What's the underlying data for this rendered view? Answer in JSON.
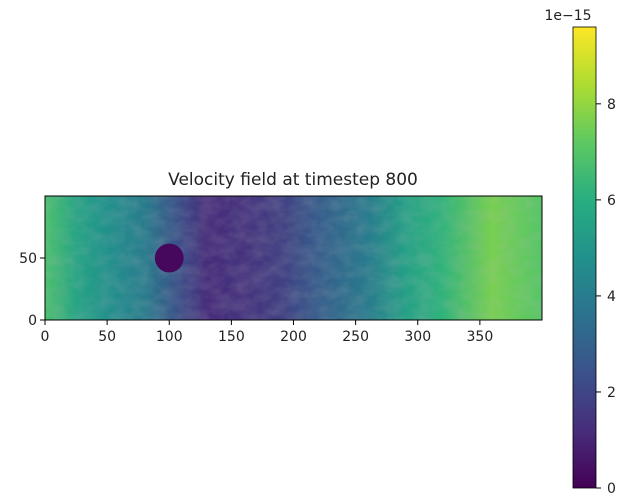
{
  "chart_data": {
    "type": "heatmap",
    "title": "Velocity field at timestep 800",
    "xlabel": "",
    "ylabel": "",
    "xlim": [
      0,
      400
    ],
    "ylim": [
      0,
      100
    ],
    "x_ticks": [
      0,
      50,
      100,
      150,
      200,
      250,
      300,
      350
    ],
    "y_ticks": [
      0,
      50
    ],
    "colormap": "viridis",
    "colorbar": {
      "range": [
        0,
        9.6
      ],
      "ticks": [
        0,
        2,
        4,
        6,
        8
      ],
      "multiplier_label": "1e−15"
    },
    "obstacle": {
      "center": [
        100,
        50
      ],
      "radius": 10
    },
    "mean_magnitude_by_x": [
      [
        0,
        6.8
      ],
      [
        25,
        5.6
      ],
      [
        50,
        4.8
      ],
      [
        80,
        4.0
      ],
      [
        110,
        2.2
      ],
      [
        130,
        1.2
      ],
      [
        160,
        1.4
      ],
      [
        190,
        1.8
      ],
      [
        220,
        2.8
      ],
      [
        260,
        4.0
      ],
      [
        290,
        5.4
      ],
      [
        320,
        6.2
      ],
      [
        360,
        7.6
      ],
      [
        400,
        7.0
      ]
    ]
  }
}
